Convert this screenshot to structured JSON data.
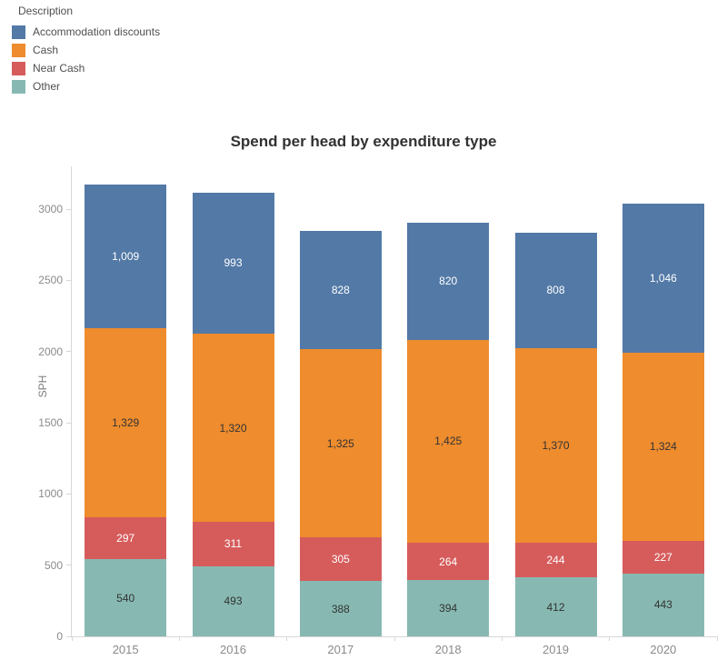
{
  "legend": {
    "title": "Description",
    "items": [
      {
        "label": "Accommodation discounts",
        "color": "#5379a6"
      },
      {
        "label": "Cash",
        "color": "#ee8c2e"
      },
      {
        "label": "Near Cash",
        "color": "#d65c5c"
      },
      {
        "label": "Other",
        "color": "#87b9b2"
      }
    ]
  },
  "chart": {
    "title": "Spend per head by expenditure type",
    "ylabel": "SPH"
  },
  "chart_data": {
    "type": "bar",
    "stacked": true,
    "title": "Spend per head by expenditure type",
    "xlabel": "",
    "ylabel": "SPH",
    "ylim": [
      0,
      3300
    ],
    "yticks": [
      0,
      500,
      1000,
      1500,
      2000,
      2500,
      3000
    ],
    "grid": false,
    "legend_title": "Description",
    "legend_position": "top-left",
    "categories": [
      "2015",
      "2016",
      "2017",
      "2018",
      "2019",
      "2020"
    ],
    "series": [
      {
        "name": "Accommodation discounts",
        "color": "#5379a6",
        "label_color": "#ffffff",
        "values": [
          1009,
          993,
          828,
          820,
          808,
          1046
        ]
      },
      {
        "name": "Cash",
        "color": "#ee8c2e",
        "label_color": "#333333",
        "values": [
          1329,
          1320,
          1325,
          1425,
          1370,
          1324
        ]
      },
      {
        "name": "Near Cash",
        "color": "#d65c5c",
        "label_color": "#ffffff",
        "values": [
          297,
          311,
          305,
          264,
          244,
          227
        ]
      },
      {
        "name": "Other",
        "color": "#87b9b2",
        "label_color": "#333333",
        "values": [
          540,
          493,
          388,
          394,
          412,
          443
        ]
      }
    ],
    "stack_order_bottom_to_top": [
      "Other",
      "Near Cash",
      "Cash",
      "Accommodation discounts"
    ],
    "totals": [
      3175,
      3117,
      2846,
      2903,
      2834,
      3040
    ]
  }
}
